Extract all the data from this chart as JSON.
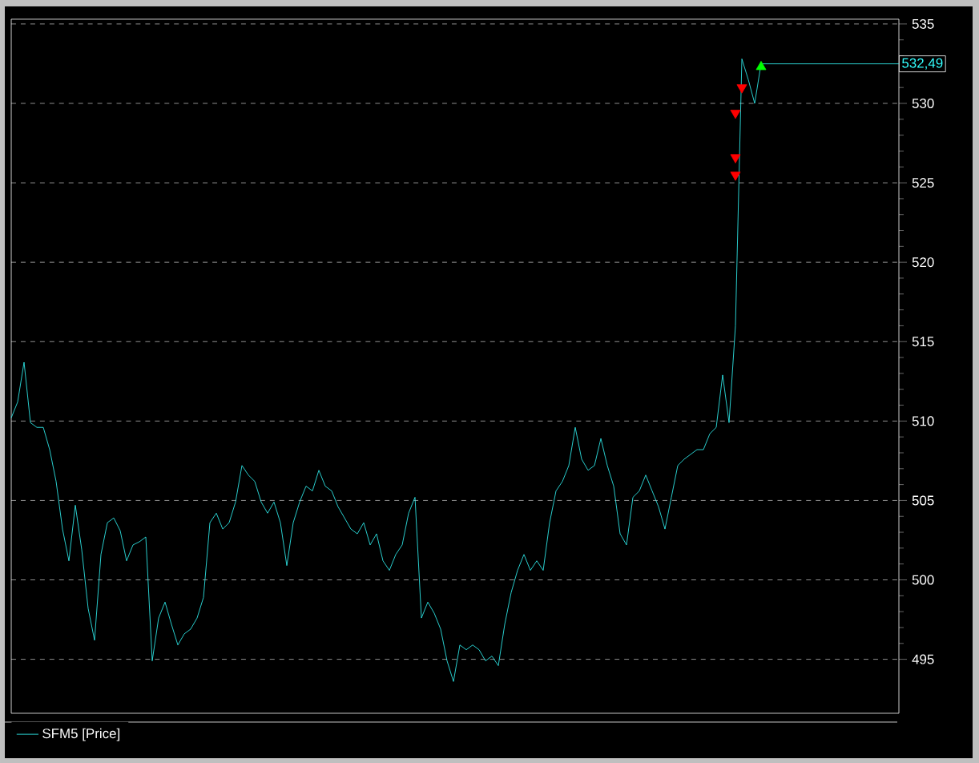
{
  "chart_data": {
    "type": "line",
    "categories": [
      null,
      null,
      null,
      null,
      null,
      null,
      null,
      null,
      null,
      null,
      null,
      null,
      null,
      null,
      null,
      null,
      null,
      null,
      null,
      null,
      null,
      null,
      null,
      null,
      null,
      null,
      null,
      null,
      null,
      null,
      null,
      null,
      null,
      null,
      null,
      null,
      null,
      null,
      null,
      null,
      null,
      null,
      null,
      null,
      null,
      null,
      null,
      null,
      null,
      null,
      null,
      null,
      null,
      null,
      null,
      null,
      null,
      null,
      null,
      null,
      null,
      null,
      null,
      null,
      null,
      null,
      null,
      null,
      null,
      null,
      null,
      null,
      null,
      null,
      null,
      null,
      null,
      null,
      null,
      null,
      null,
      null,
      null,
      null,
      null,
      null,
      null,
      null,
      null,
      null,
      null,
      null,
      null,
      null,
      null,
      null,
      null,
      null,
      null,
      null,
      null,
      null,
      null,
      null,
      null,
      null,
      null,
      null,
      null,
      null,
      null,
      null,
      null,
      null,
      null,
      null,
      null,
      null,
      null,
      null,
      null,
      null,
      null,
      null,
      null,
      null,
      null,
      null,
      null,
      null,
      null,
      null,
      null,
      null,
      null,
      null,
      null,
      null,
      null
    ],
    "series": [
      {
        "name": "SFM5 [Price]",
        "color": "#33ffff",
        "values": [
          510.2,
          511.2,
          513.7,
          509.9,
          509.6,
          509.6,
          508.2,
          506.2,
          503.2,
          501.2,
          504.7,
          501.9,
          498.2,
          496.2,
          501.6,
          503.6,
          503.9,
          503.1,
          501.2,
          502.2,
          502.4,
          502.7,
          494.9,
          497.6,
          498.6,
          497.2,
          495.9,
          496.6,
          496.9,
          497.6,
          498.9,
          503.6,
          504.2,
          503.2,
          503.6,
          504.9,
          507.2,
          506.6,
          506.2,
          504.9,
          504.2,
          504.9,
          503.6,
          500.9,
          503.6,
          504.9,
          505.9,
          505.6,
          506.9,
          505.9,
          505.6,
          504.6,
          503.9,
          503.2,
          502.9,
          503.6,
          502.2,
          502.9,
          501.2,
          500.6,
          501.6,
          502.2,
          504.2,
          505.2,
          497.6,
          498.6,
          497.9,
          496.9,
          494.9,
          493.6,
          495.9,
          495.6,
          495.9,
          495.6,
          494.9,
          495.2,
          494.6,
          497.2,
          499.2,
          500.6,
          501.6,
          500.6,
          501.2,
          500.6,
          503.6,
          505.6,
          506.2,
          507.2,
          509.6,
          507.6,
          506.9,
          507.2,
          508.9,
          507.2,
          505.9,
          502.9,
          502.2,
          505.2,
          505.6,
          506.6,
          505.6,
          504.6,
          503.2,
          505.2,
          507.2,
          507.6,
          507.9,
          508.2,
          508.2,
          509.2,
          509.6,
          512.9,
          509.9,
          516,
          532.8,
          531.5,
          530,
          532.5,
          null,
          null,
          null,
          null,
          null,
          null,
          null,
          null,
          null,
          null,
          null,
          null,
          null,
          null,
          null,
          null,
          null,
          null,
          null,
          null,
          null
        ]
      },
      {
        "type": "scatter",
        "marker": "triangle-down",
        "color": "#ff0000",
        "values": [
          null,
          null,
          null,
          null,
          null,
          null,
          null,
          null,
          null,
          null,
          null,
          null,
          null,
          null,
          null,
          null,
          null,
          null,
          null,
          null,
          null,
          null,
          null,
          null,
          null,
          null,
          null,
          null,
          null,
          null,
          null,
          null,
          null,
          null,
          null,
          null,
          null,
          null,
          null,
          null,
          null,
          null,
          null,
          null,
          null,
          null,
          null,
          null,
          null,
          null,
          null,
          null,
          null,
          null,
          null,
          null,
          null,
          null,
          null,
          null,
          null,
          null,
          null,
          null,
          null,
          null,
          null,
          null,
          null,
          null,
          null,
          null,
          null,
          null,
          null,
          null,
          null,
          null,
          null,
          null,
          null,
          null,
          null,
          null,
          null,
          null,
          null,
          null,
          null,
          null,
          null,
          null,
          null,
          null,
          null,
          null,
          null,
          null,
          null,
          null,
          null,
          null,
          null,
          null,
          null,
          null,
          null,
          null,
          null,
          null,
          null,
          null,
          null,
          529.4,
          531.0,
          null,
          null,
          null,
          null,
          null,
          null,
          null,
          null,
          null,
          null,
          null,
          null,
          null,
          null,
          null,
          null,
          null,
          null,
          null,
          null,
          null,
          null,
          null,
          null
        ]
      },
      {
        "type": "scatter",
        "marker": "triangle-down",
        "color": "#ff0000",
        "values": [
          null,
          null,
          null,
          null,
          null,
          null,
          null,
          null,
          null,
          null,
          null,
          null,
          null,
          null,
          null,
          null,
          null,
          null,
          null,
          null,
          null,
          null,
          null,
          null,
          null,
          null,
          null,
          null,
          null,
          null,
          null,
          null,
          null,
          null,
          null,
          null,
          null,
          null,
          null,
          null,
          null,
          null,
          null,
          null,
          null,
          null,
          null,
          null,
          null,
          null,
          null,
          null,
          null,
          null,
          null,
          null,
          null,
          null,
          null,
          null,
          null,
          null,
          null,
          null,
          null,
          null,
          null,
          null,
          null,
          null,
          null,
          null,
          null,
          null,
          null,
          null,
          null,
          null,
          null,
          null,
          null,
          null,
          null,
          null,
          null,
          null,
          null,
          null,
          null,
          null,
          null,
          null,
          null,
          null,
          null,
          null,
          null,
          null,
          null,
          null,
          null,
          null,
          null,
          null,
          null,
          null,
          null,
          null,
          null,
          null,
          null,
          null,
          null,
          526.6,
          null,
          null,
          null,
          null,
          null,
          null,
          null,
          null,
          null,
          null,
          null,
          null,
          null,
          null,
          null,
          null,
          null,
          null,
          null,
          null,
          null,
          null,
          null,
          null,
          null
        ]
      },
      {
        "type": "scatter",
        "marker": "triangle-down",
        "color": "#ff0000",
        "values": [
          null,
          null,
          null,
          null,
          null,
          null,
          null,
          null,
          null,
          null,
          null,
          null,
          null,
          null,
          null,
          null,
          null,
          null,
          null,
          null,
          null,
          null,
          null,
          null,
          null,
          null,
          null,
          null,
          null,
          null,
          null,
          null,
          null,
          null,
          null,
          null,
          null,
          null,
          null,
          null,
          null,
          null,
          null,
          null,
          null,
          null,
          null,
          null,
          null,
          null,
          null,
          null,
          null,
          null,
          null,
          null,
          null,
          null,
          null,
          null,
          null,
          null,
          null,
          null,
          null,
          null,
          null,
          null,
          null,
          null,
          null,
          null,
          null,
          null,
          null,
          null,
          null,
          null,
          null,
          null,
          null,
          null,
          null,
          null,
          null,
          null,
          null,
          null,
          null,
          null,
          null,
          null,
          null,
          null,
          null,
          null,
          null,
          null,
          null,
          null,
          null,
          null,
          null,
          null,
          null,
          null,
          null,
          null,
          null,
          null,
          null,
          null,
          null,
          525.5,
          null,
          null,
          null,
          null,
          null,
          null,
          null,
          null,
          null,
          null,
          null,
          null,
          null,
          null,
          null,
          null,
          null,
          null,
          null,
          null,
          null,
          null,
          null,
          null,
          null
        ]
      },
      {
        "type": "scatter",
        "marker": "triangle",
        "color": "#00ff00",
        "values": [
          null,
          null,
          null,
          null,
          null,
          null,
          null,
          null,
          null,
          null,
          null,
          null,
          null,
          null,
          null,
          null,
          null,
          null,
          null,
          null,
          null,
          null,
          null,
          null,
          null,
          null,
          null,
          null,
          null,
          null,
          null,
          null,
          null,
          null,
          null,
          null,
          null,
          null,
          null,
          null,
          null,
          null,
          null,
          null,
          null,
          null,
          null,
          null,
          null,
          null,
          null,
          null,
          null,
          null,
          null,
          null,
          null,
          null,
          null,
          null,
          null,
          null,
          null,
          null,
          null,
          null,
          null,
          null,
          null,
          null,
          null,
          null,
          null,
          null,
          null,
          null,
          null,
          null,
          null,
          null,
          null,
          null,
          null,
          null,
          null,
          null,
          null,
          null,
          null,
          null,
          null,
          null,
          null,
          null,
          null,
          null,
          null,
          null,
          null,
          null,
          null,
          null,
          null,
          null,
          null,
          null,
          null,
          null,
          null,
          null,
          null,
          null,
          null,
          null,
          null,
          null,
          null,
          532.3,
          null,
          null,
          null,
          null,
          null,
          null,
          null,
          null,
          null,
          null,
          null,
          null,
          null,
          null,
          null,
          null,
          null,
          null,
          null,
          null,
          null
        ]
      }
    ],
    "ylim": [
      491.6,
      535.3
    ],
    "yticks": [
      495,
      500,
      505,
      510,
      515,
      520,
      525,
      530,
      535
    ],
    "grid": "y",
    "legend": "bottom left",
    "tick_labels": "y",
    "marker": "none",
    "line_style": "solid",
    "ref_lines": [
      {
        "axis": "y",
        "value": 532.49,
        "label": "532,49",
        "color": "#33ffff"
      }
    ]
  }
}
